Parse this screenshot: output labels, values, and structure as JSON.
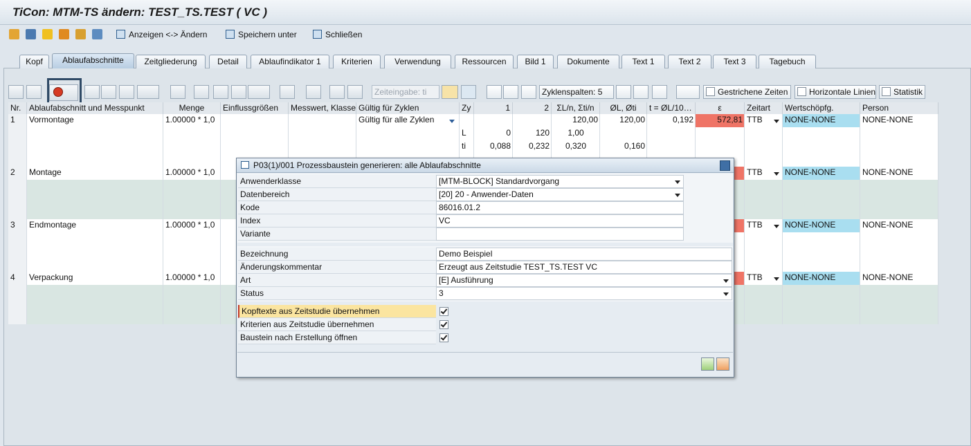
{
  "title": "TiCon: MTM-TS ändern: TEST_TS.TEST ( VC )",
  "toolbar": [
    "Anzeigen <-> Ändern",
    "Speichern unter",
    "Schließen"
  ],
  "tabs": {
    "items": [
      "Kopf",
      "Ablaufabschnitte",
      "Zeitgliederung",
      "Detail",
      "Ablaufindikator 1",
      "Kriterien",
      "Verwendung",
      "Ressourcen",
      "Bild 1",
      "Dokumente",
      "Text 1",
      "Text 2",
      "Text 3",
      "Tagebuch"
    ],
    "active": 1
  },
  "table_toolbar": {
    "zeiteingabe": "Zeiteingabe: ti",
    "zyklenspalten": "Zyklenspalten: 5",
    "checkboxes": [
      "Gestrichene Zeiten",
      "Horizontale Linien",
      "Statistik"
    ]
  },
  "table": {
    "headers": [
      "Nr.",
      "Ablaufabschnitt und Messpunkt",
      "Menge",
      "Einflussgrößen",
      "Messwert, Klasse",
      "Gültig für Zyklen",
      "Zy",
      "1",
      "2",
      "ΣL/n, Σti/n",
      "ØL, Øti",
      "t = ØL/10…",
      "ε",
      "Zeitart",
      "Wertschöpfg.",
      "Person"
    ],
    "rows": [
      {
        "nr": "1",
        "name": "Vormontage",
        "menge": "1.00000 * 1,0",
        "gueltig": "Gültig für alle Zyklen",
        "sum": "120,00",
        "avg": "120,00",
        "t": "0,192",
        "eps": "572,81",
        "zeitart": "TTB",
        "wert": "NONE-NONE",
        "person": "NONE-NONE",
        "sub": [
          {
            "zy": "L",
            "c1": "0",
            "c2": "120",
            "sum": "1,00"
          },
          {
            "zy": "ti",
            "c1": "0,088",
            "c2": "0,232",
            "sum": "0,320",
            "avg": "0,160"
          }
        ]
      },
      {
        "nr": "2",
        "name": "Montage",
        "menge": "1.00000 * 1,0",
        "zeitart": "TTB",
        "wert": "NONE-NONE",
        "person": "NONE-NONE"
      },
      {
        "nr": "3",
        "name": "Endmontage",
        "menge": "1.00000 * 1,0",
        "zeitart": "TTB",
        "wert": "NONE-NONE",
        "person": "NONE-NONE"
      },
      {
        "nr": "4",
        "name": "Verpackung",
        "menge": "1.00000 * 1,0",
        "zeitart": "TTB",
        "wert": "NONE-NONE",
        "person": "NONE-NONE"
      }
    ]
  },
  "dialog": {
    "title": "P03(1)/001 Prozessbaustein generieren: alle Ablaufabschnitte",
    "group1": [
      {
        "label": "Anwenderklasse",
        "value": "[MTM-BLOCK] Standardvorgang",
        "dropdown": true
      },
      {
        "label": "Datenbereich",
        "value": "[20] 20 - Anwender-Daten",
        "dropdown": true
      },
      {
        "label": "Kode",
        "value": "86016.01.2"
      },
      {
        "label": "Index",
        "value": "VC"
      },
      {
        "label": "Variante"
      }
    ],
    "group2": [
      {
        "label": "Bezeichnung",
        "value": "Demo Beispiel"
      },
      {
        "label": "Änderungskommentar",
        "value": "Erzeugt aus Zeitstudie TEST_TS.TEST VC"
      },
      {
        "label": "Art",
        "value": "[E] Ausführung",
        "dropdown": true
      },
      {
        "label": "Status",
        "value": "3",
        "dropdown": true
      }
    ],
    "checkboxes": [
      {
        "label": "Kopftexte aus Zeitstudie übernehmen",
        "checked": true
      },
      {
        "label": "Kriterien aus Zeitstudie übernehmen",
        "checked": true
      },
      {
        "label": "Baustein nach Erstellung öffnen",
        "checked": true
      }
    ]
  }
}
